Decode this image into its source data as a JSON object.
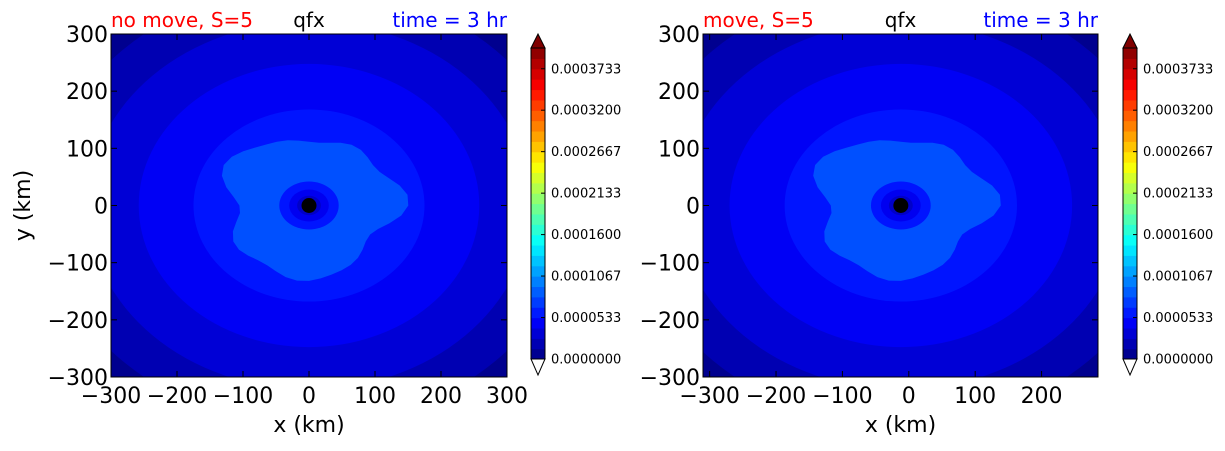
{
  "chart_data": [
    {
      "type": "heatmap",
      "title_left": "no move, S=5",
      "title_center": "qfx",
      "title_right": "time = 3 hr",
      "title_left_color": "#ff0000",
      "title_center_color": "#000000",
      "title_right_color": "#0000ff",
      "xlabel": "x (km)",
      "ylabel": "y (km)",
      "xlim": [
        -300,
        300
      ],
      "ylim": [
        -300,
        300
      ],
      "xticks": [
        -300,
        -200,
        -100,
        0,
        100,
        200,
        300
      ],
      "xtick_labels": [
        "−300",
        "−200",
        "−100",
        "0",
        "100",
        "200",
        "300"
      ],
      "yticks": [
        300,
        200,
        100,
        0,
        -100,
        -200,
        -300
      ],
      "ytick_labels": [
        "300",
        "200",
        "100",
        "0",
        "−100",
        "−200",
        "−300"
      ],
      "center": [
        0,
        0
      ],
      "colorbar": {
        "vmin": 0,
        "vmax": 0.0004,
        "tick_values": [
          0,
          5.33e-05,
          0.0001067,
          0.00016,
          0.0002133,
          0.0002667,
          0.00032,
          0.0003733
        ],
        "tick_labels": [
          "0.0000000",
          "0.0000533",
          "0.0001067",
          "0.0001600",
          "0.0002133",
          "0.0002667",
          "0.0003200",
          "0.0003733"
        ]
      }
    },
    {
      "type": "heatmap",
      "title_left": "move, S=5",
      "title_center": "qfx",
      "title_right": "time = 3 hr",
      "title_left_color": "#ff0000",
      "title_center_color": "#000000",
      "title_right_color": "#0000ff",
      "xlabel": "x (km)",
      "ylabel": "",
      "xlim": [
        -310,
        285
      ],
      "ylim": [
        -300,
        300
      ],
      "xticks": [
        -300,
        -200,
        -100,
        0,
        100,
        200
      ],
      "xtick_labels": [
        "−300",
        "−200",
        "−100",
        "0",
        "100",
        "200"
      ],
      "yticks": [
        300,
        200,
        100,
        0,
        -100,
        -200,
        -300
      ],
      "ytick_labels": [
        "300",
        "200",
        "100",
        "0",
        "−100",
        "−200",
        "−300"
      ],
      "center": [
        -12,
        0
      ],
      "colorbar": {
        "vmin": 0,
        "vmax": 0.0004,
        "tick_values": [
          0,
          5.33e-05,
          0.0001067,
          0.00016,
          0.0002133,
          0.0002667,
          0.00032,
          0.0003733
        ],
        "tick_labels": [
          "0.0000000",
          "0.0000533",
          "0.0001067",
          "0.0001600",
          "0.0002133",
          "0.0002667",
          "0.0003200",
          "0.0003733"
        ]
      }
    }
  ]
}
